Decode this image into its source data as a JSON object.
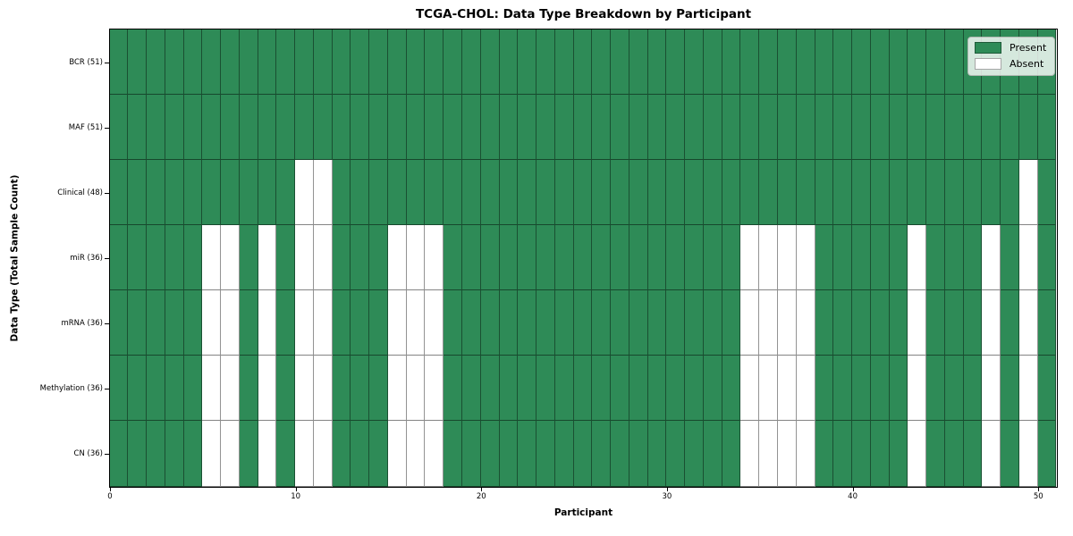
{
  "chart_data": {
    "type": "heatmap",
    "title": "TCGA-CHOL: Data Type Breakdown by Participant",
    "xlabel": "Participant",
    "ylabel": "Data Type (Total Sample Count)",
    "n_participants": 51,
    "x_axis": {
      "min": 0,
      "max": 51,
      "ticks": [
        0,
        10,
        20,
        30,
        40,
        50
      ]
    },
    "colors": {
      "present": "#2e8b57",
      "absent": "#ffffff"
    },
    "legend": {
      "position": "upper-right",
      "entries": [
        {
          "label": "Present",
          "color": "#2e8b57"
        },
        {
          "label": "Absent",
          "color": "#ffffff"
        }
      ]
    },
    "rows": [
      {
        "label": "BCR (51)",
        "data_type": "BCR",
        "total_samples": 51,
        "absent_participants": []
      },
      {
        "label": "MAF (51)",
        "data_type": "MAF",
        "total_samples": 51,
        "absent_participants": []
      },
      {
        "label": "Clinical (48)",
        "data_type": "Clinical",
        "total_samples": 48,
        "absent_participants": [
          10,
          11,
          49
        ]
      },
      {
        "label": "miR (36)",
        "data_type": "miR",
        "total_samples": 36,
        "absent_participants": [
          5,
          6,
          8,
          10,
          11,
          15,
          16,
          17,
          34,
          35,
          36,
          37,
          43,
          47,
          49
        ]
      },
      {
        "label": "mRNA (36)",
        "data_type": "mRNA",
        "total_samples": 36,
        "absent_participants": [
          5,
          6,
          8,
          10,
          11,
          15,
          16,
          17,
          34,
          35,
          36,
          37,
          43,
          47,
          49
        ]
      },
      {
        "label": "Methylation (36)",
        "data_type": "Methylation",
        "total_samples": 36,
        "absent_participants": [
          5,
          6,
          8,
          10,
          11,
          15,
          16,
          17,
          34,
          35,
          36,
          37,
          43,
          47,
          49
        ]
      },
      {
        "label": "CN (36)",
        "data_type": "CN",
        "total_samples": 36,
        "absent_participants": [
          5,
          6,
          8,
          10,
          11,
          15,
          16,
          17,
          34,
          35,
          36,
          37,
          43,
          47,
          49
        ]
      }
    ]
  }
}
